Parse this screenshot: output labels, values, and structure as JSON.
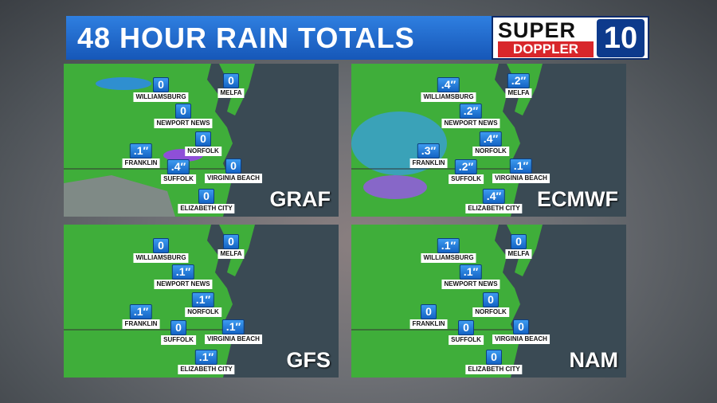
{
  "header": {
    "title": "48 HOUR RAIN TOTALS",
    "logo": {
      "top": "SUPER",
      "bottom": "DOPPLER",
      "number": "10"
    }
  },
  "panels": [
    {
      "model": "GRAF",
      "stations": [
        {
          "name": "WILLIAMSBURG",
          "amount": "0"
        },
        {
          "name": "NEWPORT NEWS",
          "amount": "0"
        },
        {
          "name": "NORFOLK",
          "amount": "0"
        },
        {
          "name": "FRANKLIN",
          "amount": ".1″"
        },
        {
          "name": "SUFFOLK",
          "amount": ".4″"
        },
        {
          "name": "VIRGINIA BEACH",
          "amount": "0"
        },
        {
          "name": "ELIZABETH CITY",
          "amount": "0"
        },
        {
          "name": "MELFA",
          "amount": "0"
        }
      ]
    },
    {
      "model": "ECMWF",
      "stations": [
        {
          "name": "WILLIAMSBURG",
          "amount": ".4″"
        },
        {
          "name": "NEWPORT NEWS",
          "amount": ".2″"
        },
        {
          "name": "NORFOLK",
          "amount": ".4″"
        },
        {
          "name": "FRANKLIN",
          "amount": ".3″"
        },
        {
          "name": "SUFFOLK",
          "amount": ".2″"
        },
        {
          "name": "VIRGINIA BEACH",
          "amount": ".1″"
        },
        {
          "name": "ELIZABETH CITY",
          "amount": ".4″"
        },
        {
          "name": "MELFA",
          "amount": ".2″"
        }
      ]
    },
    {
      "model": "GFS",
      "stations": [
        {
          "name": "WILLIAMSBURG",
          "amount": "0"
        },
        {
          "name": "NEWPORT NEWS",
          "amount": ".1″"
        },
        {
          "name": "NORFOLK",
          "amount": ".1″"
        },
        {
          "name": "FRANKLIN",
          "amount": ".1″"
        },
        {
          "name": "SUFFOLK",
          "amount": "0"
        },
        {
          "name": "VIRGINIA BEACH",
          "amount": ".1″"
        },
        {
          "name": "ELIZABETH CITY",
          "amount": ".1″"
        },
        {
          "name": "MELFA",
          "amount": "0"
        }
      ]
    },
    {
      "model": "NAM",
      "stations": [
        {
          "name": "WILLIAMSBURG",
          "amount": ".1″"
        },
        {
          "name": "NEWPORT NEWS",
          "amount": ".1″"
        },
        {
          "name": "NORFOLK",
          "amount": "0"
        },
        {
          "name": "FRANKLIN",
          "amount": "0"
        },
        {
          "name": "SUFFOLK",
          "amount": "0"
        },
        {
          "name": "VIRGINIA BEACH",
          "amount": "0"
        },
        {
          "name": "ELIZABETH CITY",
          "amount": "0"
        },
        {
          "name": "MELFA",
          "amount": "0"
        }
      ]
    }
  ]
}
